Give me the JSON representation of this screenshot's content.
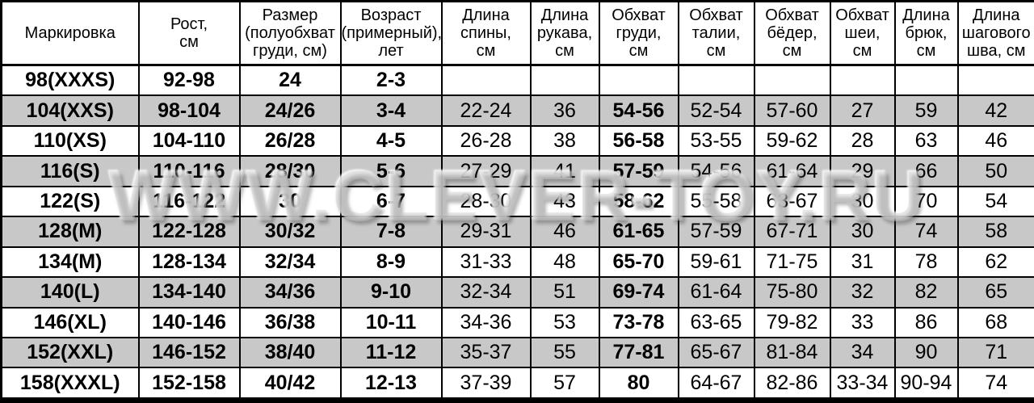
{
  "watermark": "WWW.CLEVER-TOY.RU",
  "colors": {
    "row_shade": "#c8c8c8",
    "border": "#000000",
    "text": "#000000",
    "background": "#ffffff"
  },
  "table": {
    "columns": [
      "Маркировка",
      "Рост,\nсм",
      "Размер\n(полуобхват\nгруди, см)",
      "Возраст\n(примерный),\nлет",
      "Длина\nспины,\nсм",
      "Длина\nрукава,\nсм",
      "Обхват\nгруди,\nсм",
      "Обхват\nталии,\nсм",
      "Обхват\nбёдер,\nсм",
      "Обхват\nшеи,\nсм",
      "Длина\nбрюк,\nсм",
      "Длина\nшагового\nшва, см"
    ],
    "rows": [
      [
        "98(XXXS)",
        "92-98",
        "24",
        "2-3",
        "",
        "",
        "",
        "",
        "",
        "",
        "",
        ""
      ],
      [
        "104(XXS)",
        "98-104",
        "24/26",
        "3-4",
        "22-24",
        "36",
        "54-56",
        "52-54",
        "57-60",
        "27",
        "59",
        "42"
      ],
      [
        "110(XS)",
        "104-110",
        "26/28",
        "4-5",
        "26-28",
        "38",
        "56-58",
        "53-55",
        "59-62",
        "28",
        "63",
        "46"
      ],
      [
        "116(S)",
        "110-116",
        "28/30",
        "5-6",
        "27-29",
        "41",
        "57-59",
        "54-56",
        "61-64",
        "29",
        "66",
        "50"
      ],
      [
        "122(S)",
        "116-122",
        "30",
        "6-7",
        "28-30",
        "43",
        "58-62",
        "55-58",
        "63-67",
        "30",
        "70",
        "54"
      ],
      [
        "128(M)",
        "122-128",
        "30/32",
        "7-8",
        "29-31",
        "46",
        "61-65",
        "57-59",
        "67-71",
        "30",
        "74",
        "58"
      ],
      [
        "134(M)",
        "128-134",
        "32/34",
        "8-9",
        "31-33",
        "48",
        "65-70",
        "59-61",
        "71-75",
        "31",
        "78",
        "62"
      ],
      [
        "140(L)",
        "134-140",
        "34/36",
        "9-10",
        "32-34",
        "51",
        "69-74",
        "61-64",
        "75-80",
        "32",
        "82",
        "65"
      ],
      [
        "146(XL)",
        "140-146",
        "36/38",
        "10-11",
        "34-36",
        "53",
        "73-78",
        "63-65",
        "79-82",
        "33",
        "86",
        "68"
      ],
      [
        "152(XXL)",
        "146-152",
        "38/40",
        "11-12",
        "35-37",
        "55",
        "77-81",
        "65-67",
        "81-84",
        "34",
        "90",
        "71"
      ],
      [
        "158(XXXL)",
        "152-158",
        "40/42",
        "12-13",
        "37-39",
        "57",
        "80",
        "64-67",
        "82-86",
        "33-34",
        "90-94",
        "74"
      ]
    ]
  }
}
